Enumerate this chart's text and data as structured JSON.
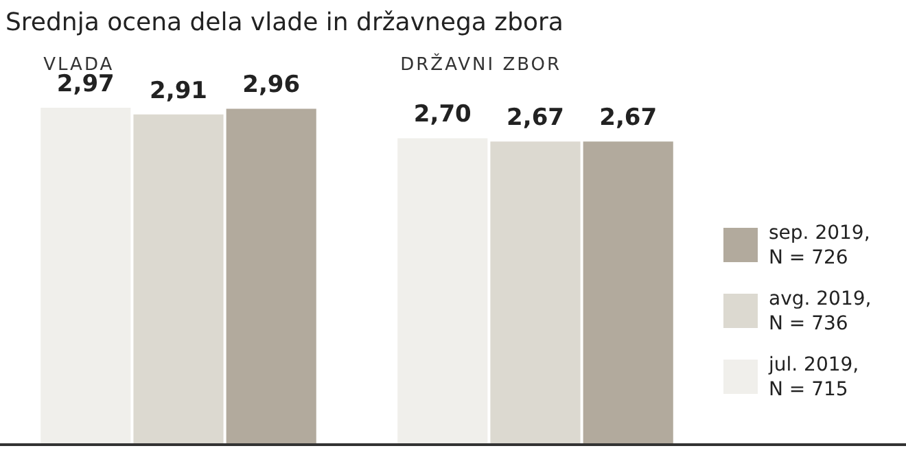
{
  "chart_data": {
    "type": "bar",
    "title": "Srednja ocena dela vlade in državnega zbora",
    "categories": [
      "VLADA",
      "DRŽAVNI ZBOR"
    ],
    "series": [
      {
        "name": "jul. 2019, N = 715",
        "color": "#f0efeb",
        "values": [
          2.97,
          2.7
        ],
        "value_labels": [
          "2,97",
          "2,70"
        ]
      },
      {
        "name": "avg. 2019, N = 736",
        "color": "#dcd9d0",
        "values": [
          2.91,
          2.67
        ],
        "value_labels": [
          "2,91",
          "2,67"
        ]
      },
      {
        "name": "sep. 2019, N = 726",
        "color": "#b2aa9d",
        "values": [
          2.96,
          2.67
        ],
        "value_labels": [
          "2,96",
          "2,67"
        ]
      }
    ],
    "legend": "right",
    "grid": false
  }
}
